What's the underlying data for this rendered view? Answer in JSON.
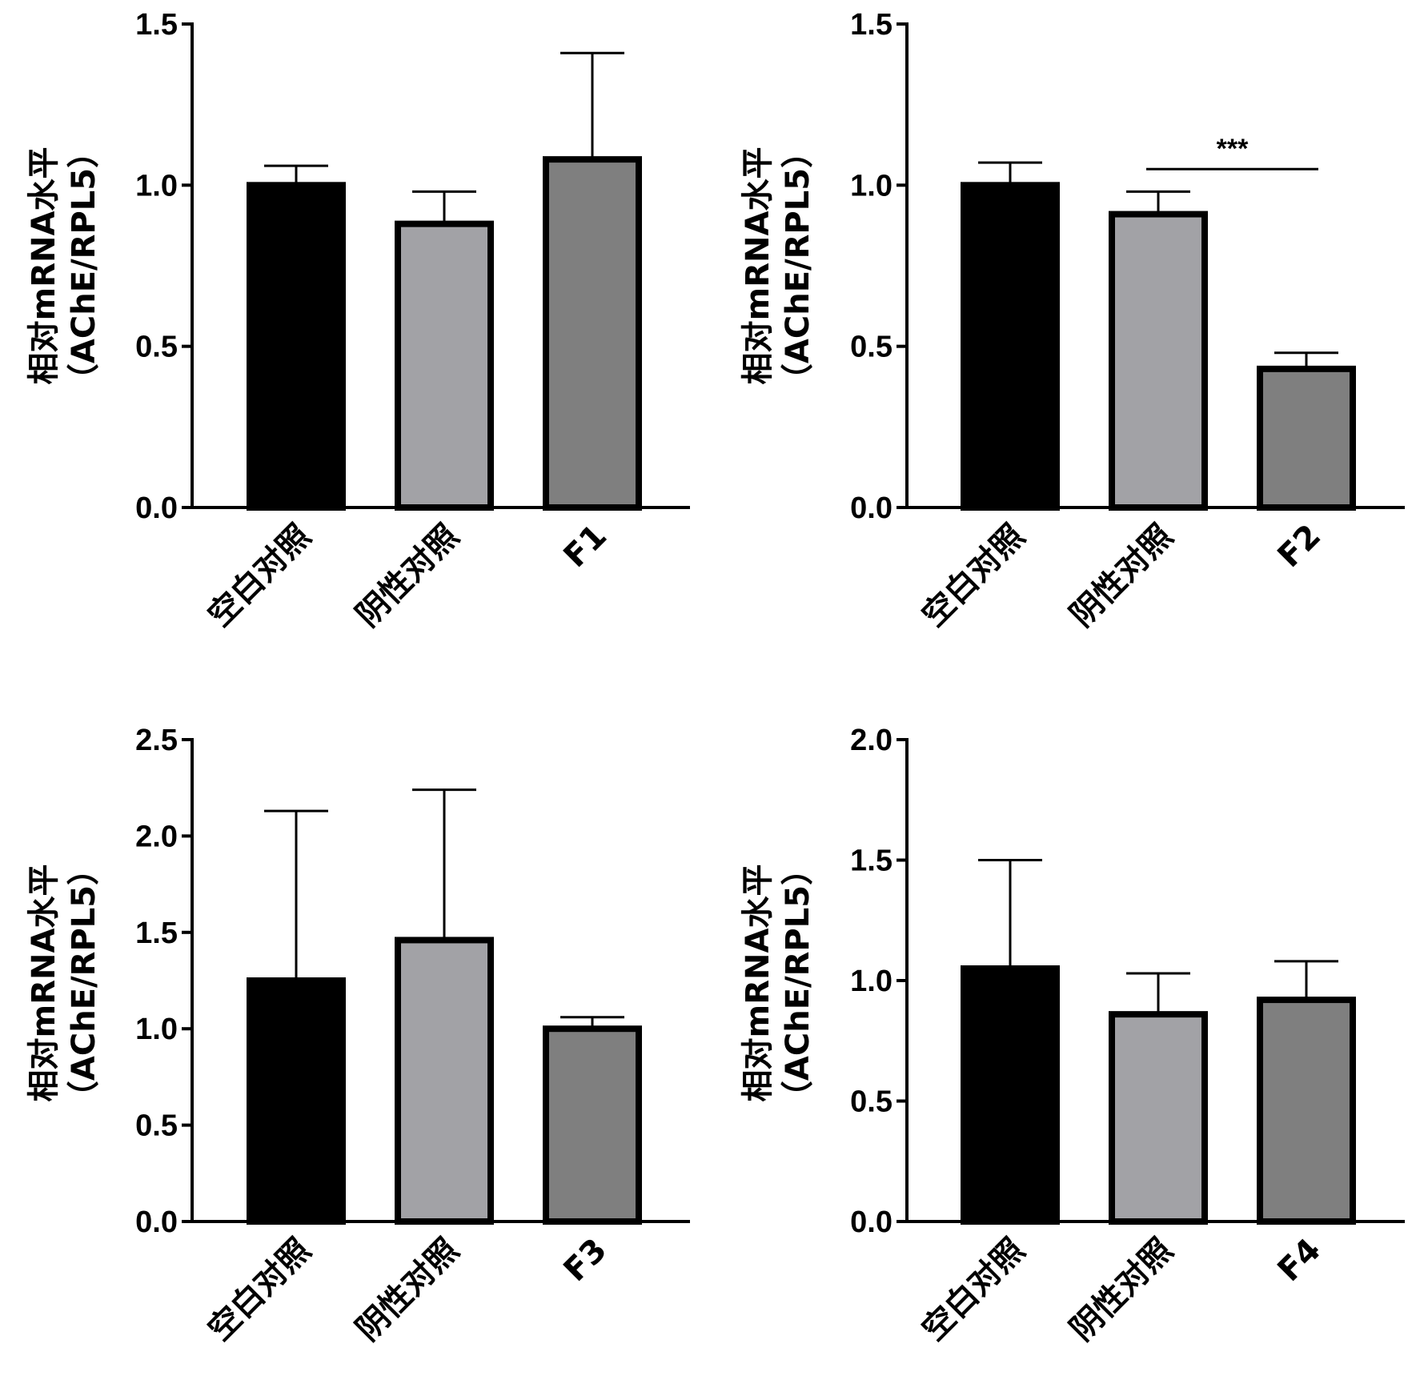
{
  "colors": {
    "axis": "#000000",
    "bar_fills": [
      "#000000",
      "#a2a2a6",
      "#7f7f7f"
    ],
    "bar_edge": "#000000",
    "background": "#ffffff"
  },
  "chart_data": [
    {
      "type": "bar",
      "title": "",
      "ylabel_line1": "相对mRNA水平",
      "ylabel_line2": "（AChE/RPL5）",
      "categories": [
        "空白对照",
        "阴性对照",
        "F1"
      ],
      "values": [
        1.0,
        0.88,
        1.08
      ],
      "errors": [
        0.06,
        0.1,
        0.33
      ],
      "ylim": [
        0,
        1.5
      ],
      "yticks": [
        "0.0",
        "0.5",
        "1.0",
        "1.5"
      ],
      "significance": null
    },
    {
      "type": "bar",
      "title": "",
      "ylabel_line1": "相对mRNA水平",
      "ylabel_line2": "（AChE/RPL5）",
      "categories": [
        "空白对照",
        "阴性对照",
        "F2"
      ],
      "values": [
        1.0,
        0.91,
        0.43
      ],
      "errors": [
        0.07,
        0.07,
        0.05
      ],
      "ylim": [
        0,
        1.5
      ],
      "yticks": [
        "0.0",
        "0.5",
        "1.0",
        "1.5"
      ],
      "significance": {
        "from": 1,
        "to": 2,
        "value": 1.05,
        "label": "***"
      }
    },
    {
      "type": "bar",
      "title": "",
      "ylabel_line1": "相对mRNA水平",
      "ylabel_line2": "（AChE/RPL5）",
      "categories": [
        "空白对照",
        "阴性对照",
        "F3"
      ],
      "values": [
        1.25,
        1.46,
        1.0
      ],
      "errors": [
        0.88,
        0.78,
        0.06
      ],
      "ylim": [
        0,
        2.5
      ],
      "yticks": [
        "0.0",
        "0.5",
        "1.0",
        "1.5",
        "2.0",
        "2.5"
      ],
      "significance": null
    },
    {
      "type": "bar",
      "title": "",
      "ylabel_line1": "相对mRNA水平",
      "ylabel_line2": "（AChE/RPL5）",
      "categories": [
        "空白对照",
        "阴性对照",
        "F4"
      ],
      "values": [
        1.05,
        0.86,
        0.92
      ],
      "errors": [
        0.45,
        0.17,
        0.16
      ],
      "ylim": [
        0,
        2.0
      ],
      "yticks": [
        "0.0",
        "0.5",
        "1.0",
        "1.5",
        "2.0"
      ],
      "significance": null
    }
  ]
}
